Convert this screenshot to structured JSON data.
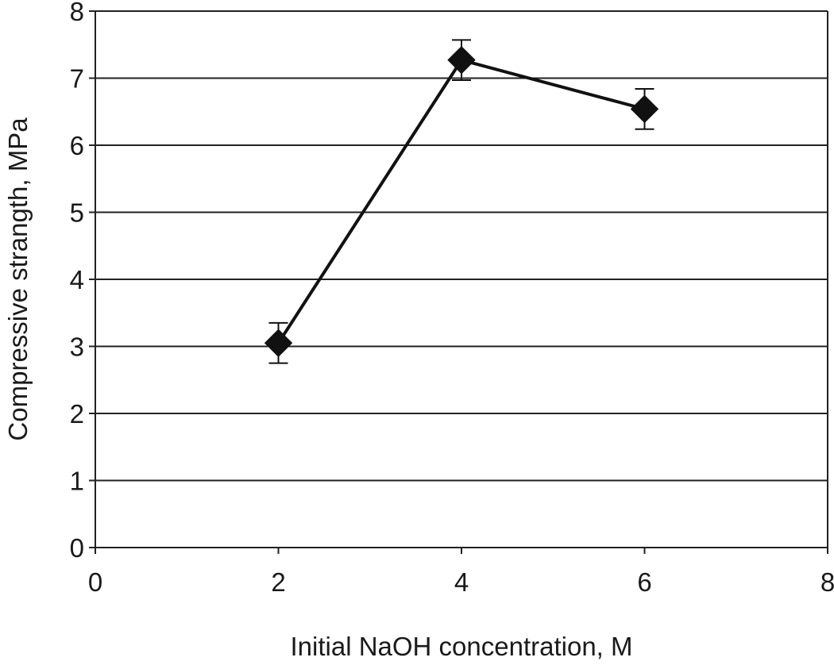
{
  "chart_data": {
    "type": "line",
    "title": "",
    "xlabel": "Initial NaOH concentration, M",
    "ylabel": "Compressive strangth, MPa",
    "xlim": [
      0,
      8
    ],
    "ylim": [
      0,
      8
    ],
    "x_ticks": [
      "0",
      "2",
      "4",
      "6",
      "8"
    ],
    "y_ticks": [
      "0",
      "1",
      "2",
      "3",
      "4",
      "5",
      "6",
      "7",
      "8"
    ],
    "grid": "horizontal",
    "legend": "none",
    "series": [
      {
        "x": [
          2,
          4,
          6
        ],
        "y": [
          3.05,
          7.27,
          6.54
        ],
        "error": [
          0.3,
          0.3,
          0.3
        ],
        "marker": "diamond",
        "color": "#111111"
      }
    ]
  }
}
